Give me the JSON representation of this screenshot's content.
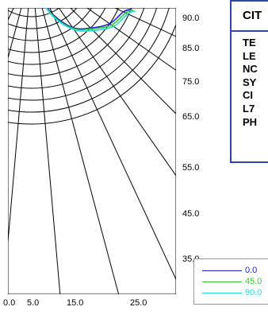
{
  "chart_data": {
    "type": "polar-radiance",
    "title": "",
    "gamma_ticks": [
      "90.0",
      "85.0",
      "75.0",
      "65.0",
      "55.0",
      "45.0",
      "35.0"
    ],
    "radial_ticks": [
      "0.0",
      "5.0",
      "15.0",
      "25.0"
    ],
    "series": [
      {
        "name": "0.0",
        "color": "#1a1acc",
        "points": [
          [
            9,
            22
          ],
          [
            8.5,
            25
          ],
          [
            8,
            35
          ],
          [
            7,
            45
          ],
          [
            6,
            55
          ],
          [
            4.2,
            65
          ],
          [
            2.2,
            75
          ],
          [
            0.9,
            85
          ],
          [
            0,
            90
          ]
        ]
      },
      {
        "name": "45.0",
        "color": "#33cc33",
        "points": [
          [
            9.2,
            22
          ],
          [
            8.7,
            25
          ],
          [
            8.2,
            35
          ],
          [
            7.1,
            45
          ],
          [
            6.1,
            55
          ],
          [
            4.4,
            65
          ],
          [
            2.35,
            75
          ],
          [
            1.0,
            85
          ],
          [
            0,
            90
          ]
        ]
      },
      {
        "name": "90.0",
        "color": "#22dddd",
        "points": [
          [
            9.4,
            22
          ],
          [
            8.9,
            25
          ],
          [
            8.4,
            35
          ],
          [
            7.3,
            45
          ],
          [
            6.2,
            55
          ],
          [
            4.5,
            65
          ],
          [
            2.45,
            75
          ],
          [
            1.05,
            85
          ],
          [
            0,
            90
          ]
        ]
      }
    ]
  },
  "info_panel": {
    "title": "CIT",
    "lines": [
      "TE",
      "LE",
      "NC",
      "SY",
      "CI",
      "L7",
      "PH"
    ],
    "border_color": "#2b47a8"
  }
}
